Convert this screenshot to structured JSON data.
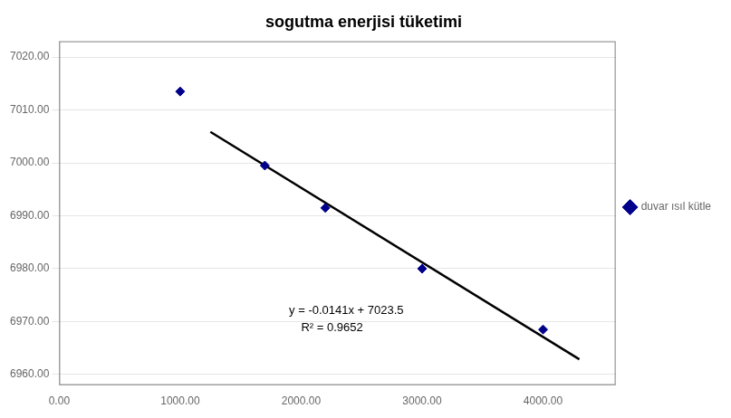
{
  "chart_data": {
    "type": "scatter",
    "title": "sogutma enerjisi tüketimi",
    "series": [
      {
        "name": "duvar ısıl kütle",
        "type": "scatter",
        "color": "#00008B",
        "marker": "diamond",
        "x": [
          1000,
          1700,
          2200,
          3000,
          4000
        ],
        "values": [
          7013.5,
          6999.5,
          6991.5,
          6980.0,
          6968.5
        ]
      },
      {
        "type": "line",
        "color": "#000000",
        "line_style": "solid",
        "x": [
          1250,
          4300
        ],
        "values": [
          7005.875,
          6962.87
        ]
      }
    ],
    "annotations": [
      {
        "text": "y = -0.0141x + 7023.5",
        "x": 1900,
        "y": 6971.5
      },
      {
        "text": "R² = 0.9652",
        "x": 2000,
        "y": 6968.2
      }
    ],
    "xlim": [
      0,
      4600
    ],
    "xticks": [
      {
        "value": 0,
        "label": "0.00"
      },
      {
        "value": 1000,
        "label": "1000.00"
      },
      {
        "value": 2000,
        "label": "2000.00"
      },
      {
        "value": 3000,
        "label": "3000.00"
      },
      {
        "value": 4000,
        "label": "4000.00"
      }
    ],
    "ylim": [
      6958.0,
      7023.0
    ],
    "yticks": [
      {
        "value": 6960.0,
        "label": "6960.00"
      },
      {
        "value": 6970.0,
        "label": "6970.00"
      },
      {
        "value": 6980.0,
        "label": "6980.00"
      },
      {
        "value": 6990.0,
        "label": "6990.00"
      },
      {
        "value": 7000.0,
        "label": "7000.00"
      },
      {
        "value": 7010.0,
        "label": "7010.00"
      },
      {
        "value": 7020.0,
        "label": "7020.00"
      }
    ],
    "grid": "y",
    "legend": "right"
  }
}
